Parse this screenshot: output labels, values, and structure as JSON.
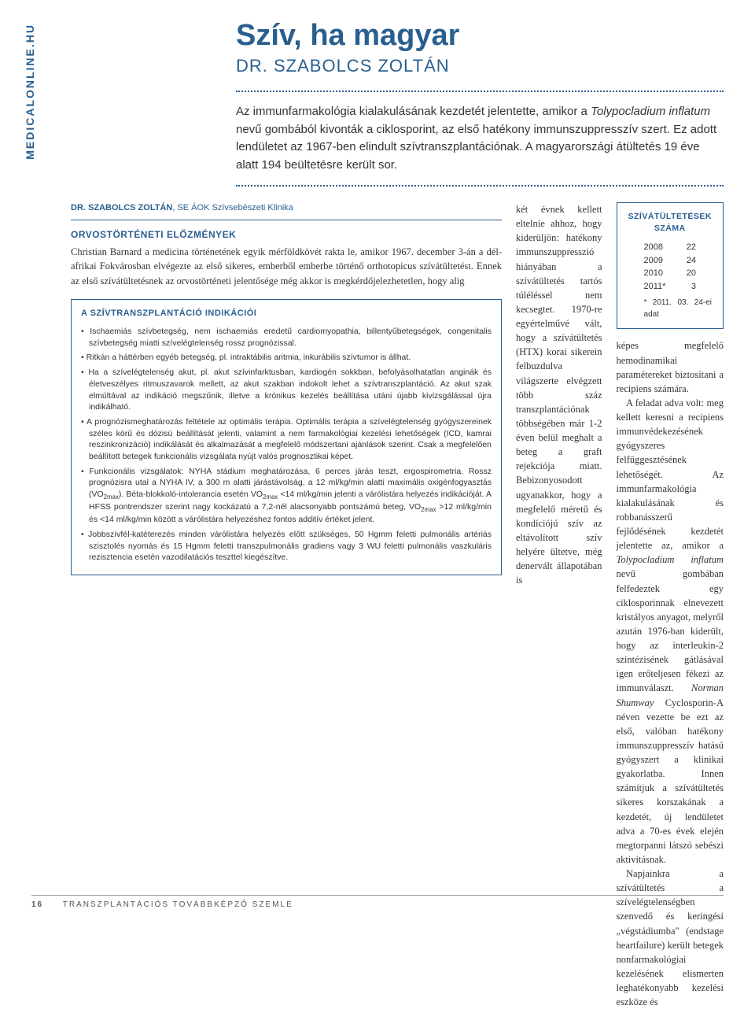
{
  "sidebar": "MEDICALONLINE.HU",
  "title": "Szív, ha magyar",
  "author": "DR. SZABOLCS ZOLTÁN",
  "lead": "Az immunfarmakológia kialakulásának kezdetét jelentette, amikor a <em>Tolypocladium inflatum</em> nevű gombából kivonták a ciklosporint, az első hatékony immunszuppresszív szert. Ez adott lendületet az 1967-ben elindult szívtranszplantációnak. A magyarországi átültetés 19 éve alatt 194 beültetésre került sor.",
  "author_detail_name": "DR. SZABOLCS ZOLTÁN",
  "author_detail_aff": ", SE ÁOK Szívsebészeti Klinika",
  "section1_head": "ORVOSTÖRTÉNETI ELŐZMÉNYEK",
  "col1_text": "Christian Barnard a medicina történetének egyik mérföldkövét rakta le, amikor 1967. december 3-án a dél-afrikai Fokvárosban elvégezte az első sikeres, emberből emberbe történő orthotopicus szívátültetést. Ennek az első szívátültetésnek az orvostörténeti jelentősége még akkor is megkérdőjelezhetetlen, hogy alig",
  "col2_text": "két évnek kellett eltelnie ahhoz, hogy kiderüljön: hatékony immunszuppresszió hiányában a szívátültetés tartós túléléssel nem kecsegtet. 1970-re egyértelművé vált, hogy a szívátültetés (HTX) korai sikerein felbuzdulva világszerte elvégzett több száz transzplantációnak többségében már 1-2 éven belül meghalt a beteg a graft rejekciója miatt. Bebizonyosodott ugyanakkor, hogy a megfelelő méretű és kondíciójú szív az eltávolított szív helyére ültetve, még denervált állapotában is",
  "stats": {
    "title": "SZÍVÁTÜLTETÉSEK SZÁMA",
    "rows": [
      {
        "year": "2008",
        "count": "22"
      },
      {
        "year": "2009",
        "count": "24"
      },
      {
        "year": "2010",
        "count": "20"
      },
      {
        "year": "2011*",
        "count": "3"
      }
    ],
    "note": "* 2011. 03. 24-ei adat"
  },
  "col3_text": "képes megfelelő hemodinamikai paramétereket biztosítani a recipiens számára.\n A feladat adva volt: meg kellett keresni a recipiens immunvédekezésének gyógyszeres felfüggesztésének lehetőségét. Az immunfarmakológia kialakulásának és robbanásszerű fejlődésének kezdetét jelentette az, amikor a <em>Tolypocladium inflatum</em> nevű gombában felfedeztek egy ciklosporinnak elnevezett kristályos anyagot, melyről azután 1976-ban kiderült, hogy az interleukin-2 szintézisének gátlásával igen erőteljesen fékezi az immunválaszt. <em>Norman Shumway</em> Cyclosporin-A néven vezette be ezt az első, valóban hatékony immunszuppresszív hatású gyógyszert a klinikai gyakorlatba. Innen számítjuk a szívátültetés sikeres korszakának a kezdetét, új lendületet adva a 70-es évek elején megtorpanni látszó sebészi aktivitásnak.\n Napjainkra a szívátültetés a szívelégtelenségben szenvedő és keringési „végstádiumba\" (endstage heartfailure) került betegek nonfarmakológiai kezelésének elismerten leghatékonyabb kezelési eszköze és",
  "box": {
    "title": "A SZÍVTRANSZPLANTÁCIÓ INDIKÁCIÓI",
    "items": [
      "Ischaemiás szívbetegség, nem ischaemiás eredetű cardiomyopathia, billentyűbetegségek, congenitalis szívbetegség miatti szívelégtelenség rossz prognózissal.",
      "Ritkán a háttérben egyéb betegség, pl. intraktábilis aritmia, inkurábilis szívtumor is állhat.",
      "Ha a szívelégtelenség akut, pl. akut szívinfarktusban, kardiogén sokkban, befolyásolhatatlan anginák és életveszélyes ritmuszavarok mellett, az akut szakban indokolt lehet a szívtranszplantáció. Az akut szak elmúltával az indikáció megszűnik, illetve a krónikus kezelés beállítása utáni újabb kivizsgálással újra indikálható.",
      "A prognózismeghatározás feltétele az optimális terápia. Optimális terápia a szívelégtelenség gyógyszereinek széles körű és dózisú beállítását jelenti, valamint a nem farmakológiai kezelési lehetőségek (ICD, kamrai reszinkronizáció) indikálását és alkalmazását a megfelelő módszertani ajánlások szerint. Csak a megfelelően beállított betegek funkcionális vizsgálata nyújt valós prognosztikai képet.",
      "Funkcionális vizsgálatok: NYHA stádium meghatározása, 6 perces járás teszt, ergospirometria. Rossz prognózisra utal a NYHA IV, a 300 m alatti járástávolság, a 12 ml/kg/min alatti maximális oxigénfogyasztás (VO<sub>2max</sub>). Béta-blokkoló-intolerancia esetén VO<sub>2max</sub> <14 ml/kg/min jelenti a várólistára helyezés indikációját. A HFSS pontrendszer szerint nagy kockázatú a 7,2-nél alacsonyabb pontszámú beteg, VO<sub>2max</sub> >12 ml/kg/min és <14 ml/kg/min között a várólistára helyezéshez fontos additív értéket jelent.",
      "Jobbszívfél-katéterezés minden várólistára helyezés előtt szükséges, 50 Hgmm feletti pulmonális artériás szisztolés nyomás és 15 Hgmm feletti transzpulmonális gradiens vagy 3 WU feletti pulmonális vaszkuláris rezisztencia esetén vazodilatációs teszttel kiegészítve."
    ]
  },
  "footer": {
    "page": "16",
    "pub": "TRANSZPLANTÁCIÓS TOVÁBBKÉPZŐ SZEMLE"
  }
}
